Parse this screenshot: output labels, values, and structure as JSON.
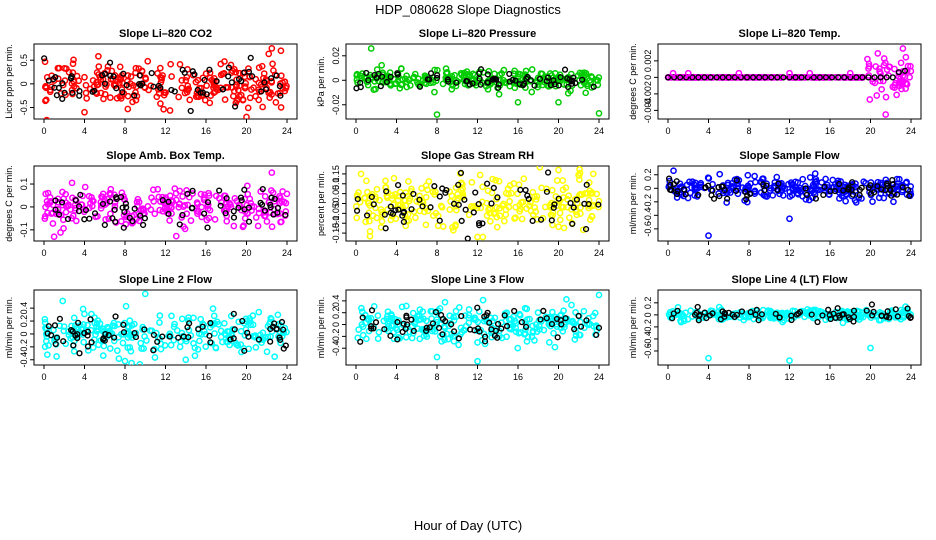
{
  "page_title": "HDP_080628  Slope Diagnostics",
  "x_axis_title": "Hour of Day (UTC)",
  "chart_data": [
    {
      "type": "scatter",
      "title": "Slope Li–820 CO2",
      "ylabel": "Licor ppm per min.",
      "color": "#ff0000",
      "xlim": [
        0,
        24
      ],
      "ylim": [
        -0.7,
        0.8
      ],
      "yticks": [
        -0.5,
        0,
        0.5
      ],
      "xticks": [
        0,
        4,
        8,
        12,
        16,
        20,
        24
      ],
      "spread": 0.22,
      "outliers": [
        [
          20,
          -0.7
        ],
        [
          22.5,
          0.75
        ],
        [
          23.4,
          0.7
        ],
        [
          4,
          -0.6
        ]
      ]
    },
    {
      "type": "scatter",
      "title": "Slope Li–820 Pressure",
      "ylabel": "kPa per min.",
      "color": "#00cc00",
      "xlim": [
        0,
        24
      ],
      "ylim": [
        -0.03,
        0.028
      ],
      "yticks": [
        -0.02,
        0,
        0.02
      ],
      "xticks": [
        0,
        4,
        8,
        12,
        16,
        20,
        24
      ],
      "spread": 0.004,
      "outliers": [
        [
          1.5,
          0.026
        ],
        [
          8,
          -0.028
        ],
        [
          24,
          -0.027
        ],
        [
          20,
          -0.018
        ],
        [
          16,
          -0.018
        ]
      ]
    },
    {
      "type": "scatter",
      "title": "Slope Li–820 Temp.",
      "ylabel": "degrees C per min.",
      "color": "#ff00ff",
      "xlim": [
        0,
        24
      ],
      "ylim": [
        -0.0048,
        0.0038
      ],
      "yticks": [
        -0.004,
        -0.002,
        0,
        0.002
      ],
      "xticks": [
        0,
        4,
        8,
        12,
        16,
        20,
        24
      ],
      "spread": 0.0,
      "outliers": [
        [
          0.5,
          0.0005
        ],
        [
          2,
          0.0005
        ],
        [
          7,
          0.0005
        ],
        [
          12,
          0.0005
        ],
        [
          14,
          0.0005
        ],
        [
          18,
          0.0005
        ],
        [
          21.5,
          -0.0045
        ],
        [
          23.2,
          0.0035
        ]
      ]
    },
    {
      "type": "scatter",
      "title": "Slope Amb. Box Temp.",
      "ylabel": "degrees C per min.",
      "color": "#ff00ff",
      "xlim": [
        0,
        24
      ],
      "ylim": [
        -0.14,
        0.17
      ],
      "yticks": [
        -0.1,
        0,
        0.1
      ],
      "xticks": [
        0,
        4,
        8,
        12,
        16,
        20,
        24
      ],
      "spread": 0.045,
      "outliers": [
        [
          22.5,
          0.15
        ],
        [
          1,
          -0.13
        ]
      ]
    },
    {
      "type": "scatter",
      "title": "Slope Gas Stream RH",
      "ylabel": "percent per min.",
      "color": "#ffff00",
      "xlim": [
        0,
        24
      ],
      "ylim": [
        -0.18,
        0.18
      ],
      "yticks": [
        -0.15,
        -0.1,
        -0.05,
        0,
        0.05,
        0.1,
        0.15
      ],
      "xticks": [
        0,
        4,
        8,
        12,
        16,
        20,
        24
      ],
      "spread": 0.07,
      "outliers": [
        [
          0.5,
          0.15
        ],
        [
          20,
          0.17
        ],
        [
          12,
          -0.17
        ]
      ]
    },
    {
      "type": "scatter",
      "title": "Slope Sample Flow",
      "ylabel": "ml/min per min.",
      "color": "#0000ff",
      "xlim": [
        0,
        24
      ],
      "ylim": [
        -0.75,
        0.3
      ],
      "yticks": [
        -0.6,
        -0.4,
        -0.2,
        0,
        0.2
      ],
      "xticks": [
        0,
        4,
        8,
        12,
        16,
        20,
        24
      ],
      "spread": 0.08,
      "outliers": [
        [
          4,
          -0.7
        ],
        [
          12,
          -0.45
        ]
      ]
    },
    {
      "type": "scatter",
      "title": "Slope Line 2 Flow",
      "ylabel": "ml/min per min.",
      "color": "#00ffff",
      "xlim": [
        0,
        24
      ],
      "ylim": [
        -0.45,
        0.65
      ],
      "yticks": [
        -0.4,
        -0.2,
        0,
        0.2,
        0.4
      ],
      "xticks": [
        0,
        4,
        8,
        12,
        16,
        20,
        24
      ],
      "spread": 0.15,
      "outliers": [
        [
          10,
          0.62
        ],
        [
          8,
          -0.42
        ],
        [
          14,
          -0.4
        ]
      ]
    },
    {
      "type": "scatter",
      "title": "Slope Line 3 Flow",
      "ylabel": "ml/min per min.",
      "color": "#00ffff",
      "xlim": [
        0,
        24
      ],
      "ylim": [
        -0.65,
        0.55
      ],
      "yticks": [
        -0.4,
        -0.2,
        0,
        0.2,
        0.4
      ],
      "xticks": [
        0,
        4,
        8,
        12,
        16,
        20,
        24
      ],
      "spread": 0.15,
      "outliers": [
        [
          8,
          -0.55
        ],
        [
          12,
          -0.62
        ],
        [
          24,
          0.5
        ]
      ]
    },
    {
      "type": "scatter",
      "title": "Slope Line 4 (LT) Flow",
      "ylabel": "ml/min per min.",
      "color": "#00ffff",
      "xlim": [
        0,
        24
      ],
      "ylim": [
        -0.8,
        0.38
      ],
      "yticks": [
        -0.6,
        -0.4,
        -0.2,
        0,
        0.2
      ],
      "xticks": [
        0,
        4,
        8,
        12,
        16,
        20,
        24
      ],
      "spread": 0.05,
      "outliers": [
        [
          4,
          -0.72
        ],
        [
          12,
          -0.76
        ],
        [
          20,
          -0.55
        ]
      ]
    }
  ]
}
